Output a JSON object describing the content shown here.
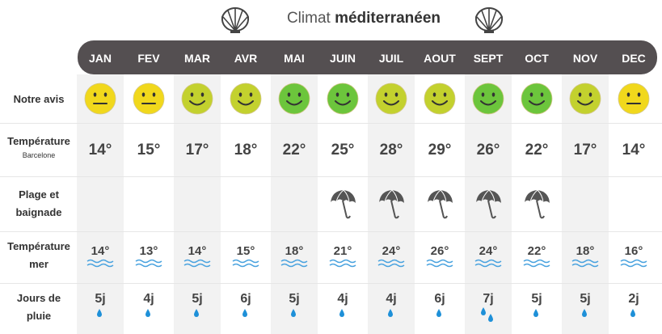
{
  "title": {
    "normal": "Climat",
    "bold": "méditerranéen"
  },
  "months": [
    "JAN",
    "FEV",
    "MAR",
    "AVR",
    "MAI",
    "JUIN",
    "JUIL",
    "AOUT",
    "SEPT",
    "OCT",
    "NOV",
    "DEC"
  ],
  "rows": {
    "avis": {
      "label": "Notre avis"
    },
    "temp": {
      "label": "Température",
      "sub": "Barcelone"
    },
    "plage": {
      "label_line1": "Plage et",
      "label_line2": "baignade"
    },
    "mer": {
      "label_line1": "Température",
      "label_line2": "mer"
    },
    "pluie": {
      "label_line1": "Jours de",
      "label_line2": "pluie"
    }
  },
  "avis_ratings": [
    "neutral",
    "neutral",
    "ok",
    "ok",
    "good",
    "good",
    "ok",
    "ok",
    "good",
    "good",
    "ok",
    "neutral"
  ],
  "rating_colors": {
    "neutral": "#f1d81c",
    "ok": "#c3d12e",
    "good": "#6cc53c"
  },
  "temperatures": [
    "14°",
    "15°",
    "17°",
    "18°",
    "22°",
    "25°",
    "28°",
    "29°",
    "26°",
    "22°",
    "17°",
    "14°"
  ],
  "beach": [
    false,
    false,
    false,
    false,
    false,
    true,
    true,
    true,
    true,
    true,
    false,
    false
  ],
  "sea_temperatures": [
    "14°",
    "13°",
    "14°",
    "15°",
    "18°",
    "21°",
    "24°",
    "26°",
    "24°",
    "22°",
    "18°",
    "16°"
  ],
  "rain_days": [
    "5j",
    "4j",
    "5j",
    "6j",
    "5j",
    "4j",
    "4j",
    "6j",
    "7j",
    "5j",
    "5j",
    "2j"
  ],
  "rain_drops": [
    1,
    1,
    1,
    1,
    1,
    1,
    1,
    1,
    2,
    1,
    1,
    1
  ],
  "colors": {
    "header": "#544f51",
    "wave": "#4aa3df",
    "drop": "#1e90d8",
    "umbrella": "#555555"
  }
}
